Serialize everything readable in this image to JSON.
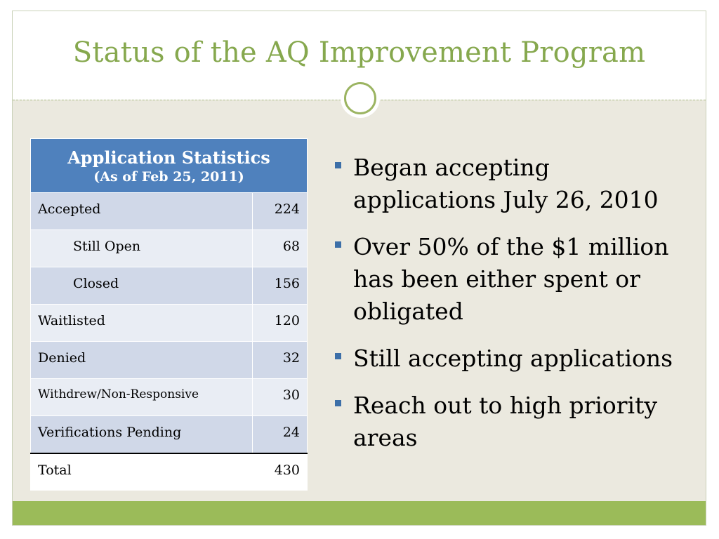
{
  "slide": {
    "title": "Status of the AQ Improvement Program"
  },
  "table": {
    "header_main": "Application Statistics",
    "header_sub": "(As of Feb 25, 2011)",
    "rows": [
      {
        "label": "Accepted",
        "value": "224"
      },
      {
        "label": "Still Open",
        "value": "68"
      },
      {
        "label": "Closed",
        "value": "156"
      },
      {
        "label": "Waitlisted",
        "value": "120"
      },
      {
        "label": "Denied",
        "value": "32"
      },
      {
        "label": "Withdrew/Non-Responsive",
        "value": "30"
      },
      {
        "label": "Verifications Pending",
        "value": "24"
      },
      {
        "label": "Total",
        "value": "430"
      }
    ]
  },
  "bullets": [
    "Began accepting applications July 26, 2010",
    "Over 50% of the $1 million has been either spent or obligated",
    "Still accepting applications",
    "Reach out to high priority areas"
  ],
  "colors": {
    "title": "#86a84e",
    "header_bg": "#4f81bd",
    "row_shade": "#d0d8e8",
    "row_plain": "#e9edf4",
    "slide_bg": "#ebe9df",
    "accent_bar": "#9bbb59",
    "bullet": "#3c6fa8"
  }
}
